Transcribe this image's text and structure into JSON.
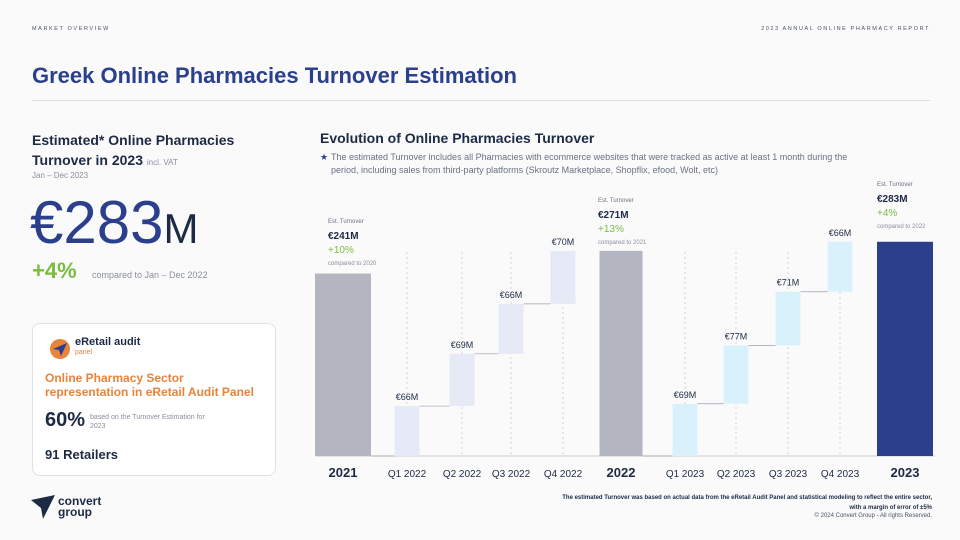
{
  "header": {
    "section": "MARKET OVERVIEW",
    "report": "2023 ANNUAL ONLINE PHARMACY REPORT"
  },
  "title": "Greek Online Pharmacies Turnover Estimation",
  "left": {
    "heading": "Estimated* Online Pharmacies Turnover in 2023",
    "heading_note": "incl. VAT",
    "period": "Jan – Dec 2023",
    "big_value": "€283M",
    "growth": "+4%",
    "growth_compare": "compared to Jan – Dec 2022"
  },
  "card": {
    "brand": "eRetail audit",
    "brand_sub": "panel",
    "heading": "Online Pharmacy Sector representation in eRetail Audit Panel",
    "pct": "60%",
    "pct_note": "based on the Turnover Estimation for 2023",
    "retailers": "91 Retailers"
  },
  "right": {
    "heading": "Evolution of Online Pharmacies Turnover",
    "note_mark": "★",
    "note": "The estimated Turnover includes all Pharmacies with ecommerce websites that were tracked as active at least 1 month during the period, including sales from third-party platforms (Skroutz Marketplace, Shopflix, efood, Wolt, etc)"
  },
  "chart_data": {
    "type": "bar",
    "subtype": "waterfall",
    "categories": [
      "2021",
      "Q1 2022",
      "Q2 2022",
      "Q3 2022",
      "Q4 2022",
      "2022",
      "Q1 2023",
      "Q2 2023",
      "Q3 2023",
      "Q4 2023",
      "2023"
    ],
    "values": [
      241,
      66,
      69,
      66,
      70,
      271,
      69,
      77,
      71,
      66,
      283
    ],
    "kinds": [
      "total",
      "step",
      "step",
      "step",
      "step",
      "total",
      "step",
      "step",
      "step",
      "step",
      "total"
    ],
    "labels": [
      "€241M",
      "€66M",
      "€69M",
      "€66M",
      "€70M",
      "€271M",
      "€69M",
      "€77M",
      "€71M",
      "€66M",
      "€283M"
    ],
    "total_caption": "Est. Turnover",
    "growth": [
      null,
      null,
      null,
      null,
      null,
      "+13%",
      null,
      null,
      null,
      null,
      "+4%"
    ],
    "totals_info": [
      {
        "growth": "+10%",
        "compare": "compared to 2020"
      },
      {
        "growth": "+13%",
        "compare": "compared to 2021"
      },
      {
        "growth": "+4%",
        "compare": "compared to 2022"
      }
    ],
    "colors": {
      "total_past": "#b3b5c0",
      "total_current": "#2b3f8c",
      "step_2022": "#e6e9f6",
      "step_2023": "#d9f1fb",
      "growth": "#7cbb41"
    }
  },
  "footer": {
    "note": "The estimated Turnover was based on actual data from the eRetail Audit Panel and statistical modeling to reflect the entire sector, with a margin of error of ±5%",
    "copyright": "© 2024 Convert Group - All rights Reserved.",
    "logo_text": "convert group"
  }
}
